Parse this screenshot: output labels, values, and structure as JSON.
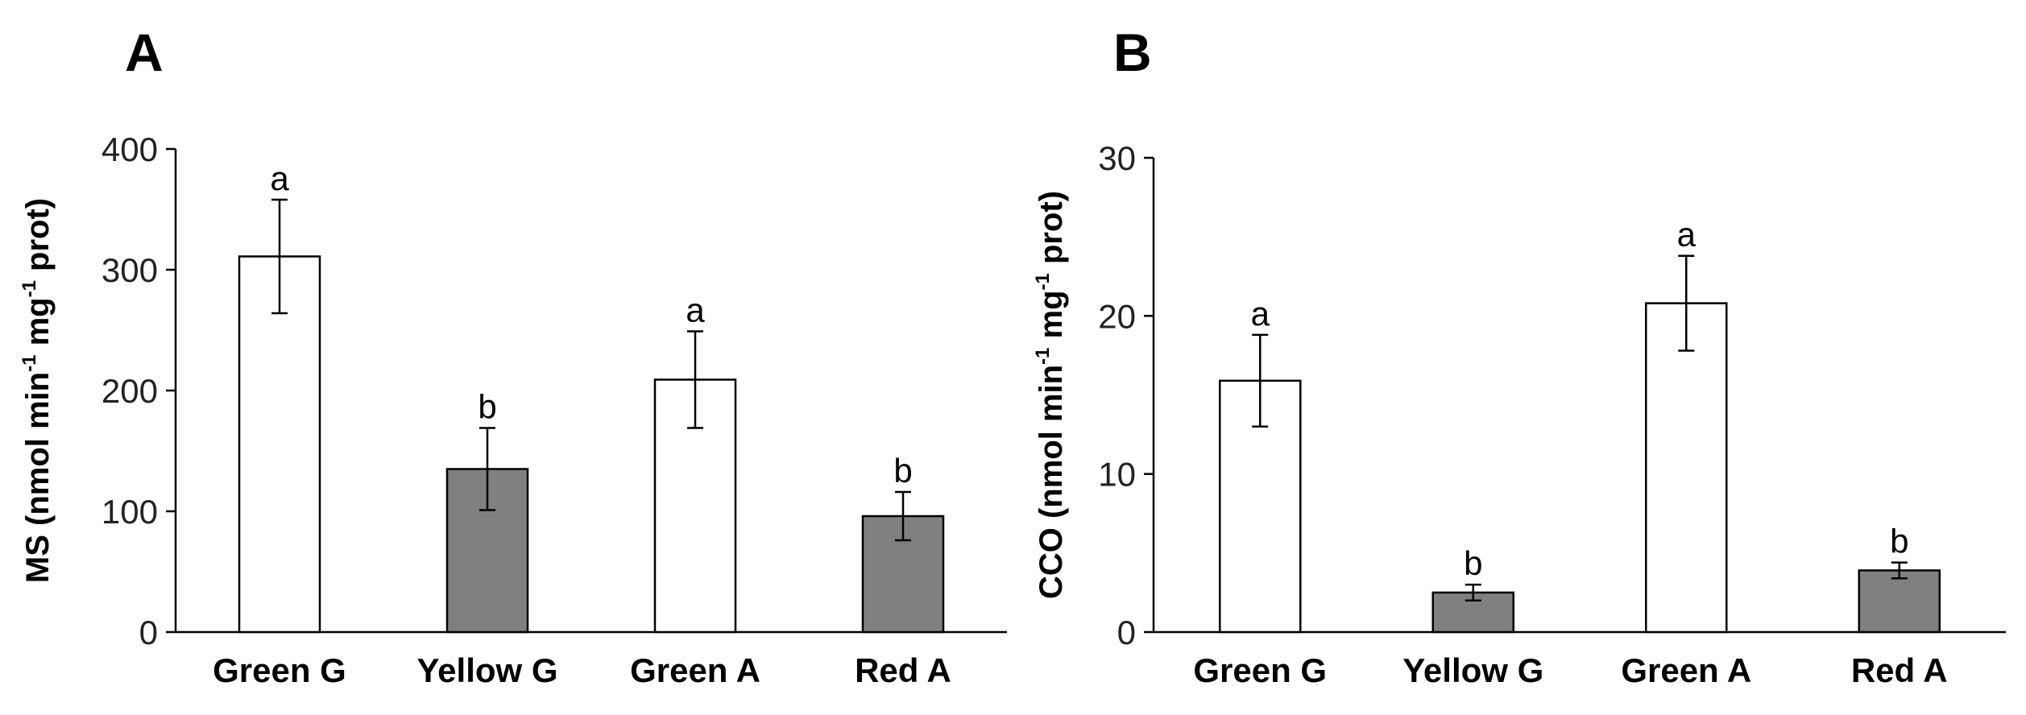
{
  "chart_data": [
    {
      "panel": "A",
      "type": "bar",
      "categories": [
        "Green G",
        "Yellow G",
        "Green A",
        "Red A"
      ],
      "values": [
        311,
        135,
        209,
        96
      ],
      "errors": [
        47,
        34,
        40,
        20
      ],
      "significance": [
        "a",
        "b",
        "a",
        "b"
      ],
      "bar_fill": [
        "#ffffff",
        "#808080",
        "#ffffff",
        "#808080"
      ],
      "ylabel": {
        "main": "MS (nmol min",
        "sup1": "-1",
        "mid": " mg",
        "sup2": "-1",
        "end": " prot)"
      },
      "ylim": [
        0,
        400
      ],
      "yticks": [
        0,
        100,
        200,
        300,
        400
      ],
      "xlabel": ""
    },
    {
      "panel": "B",
      "type": "bar",
      "categories": [
        "Green G",
        "Yellow G",
        "Green A",
        "Red A"
      ],
      "values": [
        15.9,
        2.5,
        20.8,
        3.9
      ],
      "errors": [
        2.9,
        0.5,
        3.0,
        0.5
      ],
      "significance": [
        "a",
        "b",
        "a",
        "b"
      ],
      "bar_fill": [
        "#ffffff",
        "#808080",
        "#ffffff",
        "#808080"
      ],
      "ylabel": {
        "main": "CCO (nmol min",
        "sup1": "-1",
        "mid": " mg",
        "sup2": "-1",
        "end": " prot)"
      },
      "ylim": [
        0,
        30
      ],
      "yticks": [
        0,
        10,
        20,
        30
      ],
      "xlabel": ""
    }
  ]
}
